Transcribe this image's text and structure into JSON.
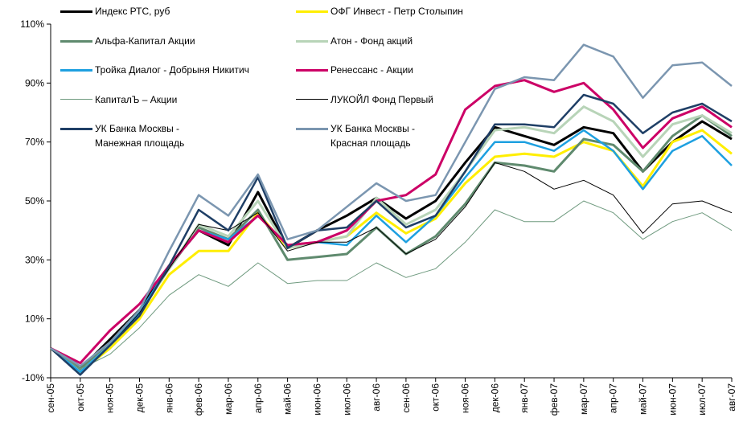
{
  "chart_data": {
    "type": "line",
    "categories": [
      "сен-05",
      "окт-05",
      "ноя-05",
      "дек-05",
      "янв-06",
      "фев-06",
      "мар-06",
      "апр-06",
      "май-06",
      "июн-06",
      "июл-06",
      "авг-06",
      "сен-06",
      "окт-06",
      "ноя-06",
      "дек-06",
      "янв-07",
      "фев-07",
      "мар-07",
      "апр-07",
      "май-07",
      "июн-07",
      "июл-07",
      "авг-07"
    ],
    "series": [
      {
        "name": "Индекс РТС, руб",
        "color": "#000000",
        "values": [
          0,
          -7,
          3,
          13,
          28,
          40,
          35,
          53,
          34,
          40,
          45,
          51,
          44,
          50,
          63,
          75,
          72,
          69,
          75,
          73,
          60,
          70,
          77,
          71
        ]
      },
      {
        "name": "ОФГ Инвест - Петр Столыпин",
        "color": "#ffee00",
        "values": [
          0,
          -8,
          0,
          10,
          25,
          33,
          33,
          46,
          34,
          36,
          38,
          46,
          39,
          44,
          56,
          65,
          66,
          65,
          70,
          67,
          55,
          70,
          74,
          66
        ]
      },
      {
        "name": "Альфа-Капитал Акции",
        "color": "#5f8a6e",
        "values": [
          0,
          -7,
          2,
          12,
          27,
          41,
          37,
          47,
          30,
          31,
          32,
          41,
          32,
          38,
          49,
          63,
          62,
          60,
          71,
          69,
          60,
          72,
          79,
          72
        ]
      },
      {
        "name": "Атон - Фонд акций",
        "color": "#b8d4b8",
        "values": [
          0,
          -8,
          1,
          12,
          27,
          42,
          38,
          50,
          34,
          36,
          38,
          51,
          42,
          47,
          60,
          74,
          75,
          73,
          82,
          77,
          65,
          76,
          79,
          73
        ]
      },
      {
        "name": "Тройка Диалог - Добрыня Никитич",
        "color": "#1ea0e0",
        "values": [
          0,
          -8,
          1,
          12,
          28,
          40,
          37,
          45,
          35,
          36,
          35,
          45,
          36,
          45,
          58,
          70,
          70,
          67,
          74,
          67,
          54,
          67,
          72,
          62
        ]
      },
      {
        "name": "Ренессанс - Акции",
        "color": "#cc0066",
        "values": [
          0,
          -5,
          6,
          15,
          28,
          40,
          36,
          45,
          35,
          36,
          40,
          50,
          52,
          59,
          81,
          89,
          91,
          87,
          90,
          81,
          68,
          78,
          82,
          75
        ]
      },
      {
        "name": "КапиталЪ – Акции",
        "color": "#6f9a7f",
        "values": [
          0,
          -7,
          -2,
          7,
          18,
          25,
          21,
          29,
          22,
          23,
          23,
          29,
          24,
          27,
          36,
          47,
          43,
          43,
          50,
          46,
          37,
          43,
          46,
          40
        ]
      },
      {
        "name": "ЛУКОЙЛ Фонд Первый",
        "color": "#000000",
        "values": [
          0,
          -9,
          1,
          12,
          27,
          42,
          40,
          46,
          33,
          36,
          36,
          41,
          32,
          37,
          48,
          63,
          60,
          54,
          57,
          52,
          39,
          49,
          50,
          46
        ]
      },
      {
        "name": "УК Банка Москвы - Манежная площадь",
        "color": "#1f3f66",
        "values": [
          0,
          -9,
          1,
          11,
          28,
          47,
          40,
          58,
          34,
          40,
          41,
          50,
          41,
          45,
          60,
          76,
          76,
          75,
          86,
          83,
          73,
          80,
          83,
          77
        ]
      },
      {
        "name": "УК Банка Москвы - Красная площадь",
        "color": "#7b96b0",
        "values": [
          0,
          -6,
          2,
          13,
          33,
          52,
          45,
          59,
          37,
          40,
          48,
          56,
          50,
          52,
          70,
          88,
          92,
          91,
          103,
          99,
          85,
          96,
          97,
          89
        ]
      }
    ],
    "ylim": [
      -10,
      110
    ],
    "yticks": [
      {
        "value": -10,
        "label": "-10%"
      },
      {
        "value": 10,
        "label": "10%"
      },
      {
        "value": 30,
        "label": "30%"
      },
      {
        "value": 50,
        "label": "50%"
      },
      {
        "value": 70,
        "label": "70%"
      },
      {
        "value": 90,
        "label": "90%"
      },
      {
        "value": 110,
        "label": "110%"
      }
    ],
    "grid": false
  }
}
